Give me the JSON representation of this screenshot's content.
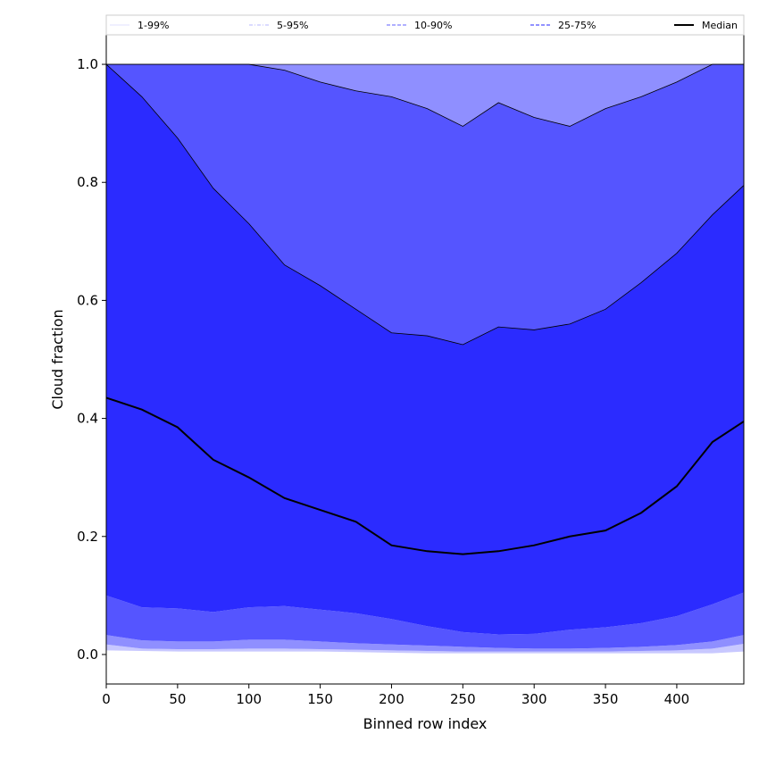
{
  "chart_data": {
    "type": "area",
    "xlabel": "Binned row index",
    "ylabel": "Cloud fraction",
    "xlim": [
      0,
      447
    ],
    "ylim": [
      -0.05,
      1.05
    ],
    "x_ticks": [
      0,
      50,
      100,
      150,
      200,
      250,
      300,
      350,
      400
    ],
    "y_ticks": [
      0.0,
      0.2,
      0.4,
      0.6,
      0.8,
      1.0
    ],
    "legend_position": "top, horizontal strip above plot",
    "legend": [
      {
        "label": "1-99%",
        "color": "#d8d8ff",
        "style": "solid-thin"
      },
      {
        "label": "5-95%",
        "color": "#a0a0ff",
        "style": "dashdot-thin"
      },
      {
        "label": "10-90%",
        "color": "#8080ff",
        "style": "dashed"
      },
      {
        "label": "25-75%",
        "color": "#5050ff",
        "style": "dashed"
      },
      {
        "label": "Median",
        "color": "#000000",
        "style": "solid-thick"
      }
    ],
    "x": [
      0,
      25,
      50,
      75,
      100,
      125,
      150,
      175,
      200,
      225,
      250,
      275,
      300,
      325,
      350,
      375,
      400,
      425,
      447
    ],
    "series": [
      {
        "name": "1-99%",
        "lower": [
          0.007,
          0.006,
          0.005,
          0.005,
          0.005,
          0.005,
          0.005,
          0.004,
          0.003,
          0.002,
          0.002,
          0.002,
          0.002,
          0.002,
          0.002,
          0.002,
          0.002,
          0.002,
          0.005
        ],
        "upper": [
          1.0,
          1.0,
          1.0,
          1.0,
          1.0,
          1.0,
          1.0,
          1.0,
          1.0,
          1.0,
          1.0,
          1.0,
          1.0,
          1.0,
          1.0,
          1.0,
          1.0,
          1.0,
          1.0
        ]
      },
      {
        "name": "5-95%",
        "lower": [
          0.017,
          0.01,
          0.009,
          0.009,
          0.01,
          0.01,
          0.009,
          0.008,
          0.007,
          0.006,
          0.005,
          0.005,
          0.005,
          0.005,
          0.005,
          0.006,
          0.007,
          0.01,
          0.018
        ],
        "upper": [
          1.0,
          1.0,
          1.0,
          1.0,
          1.0,
          0.99,
          0.97,
          0.955,
          0.945,
          0.925,
          0.895,
          0.935,
          0.91,
          0.895,
          0.925,
          0.945,
          0.97,
          1.0,
          1.0
        ]
      },
      {
        "name": "10-90%",
        "lower": [
          0.033,
          0.024,
          0.022,
          0.022,
          0.025,
          0.025,
          0.022,
          0.019,
          0.017,
          0.015,
          0.013,
          0.011,
          0.01,
          0.01,
          0.011,
          0.013,
          0.016,
          0.022,
          0.033
        ],
        "upper": [
          1.0,
          0.945,
          0.875,
          0.79,
          0.73,
          0.66,
          0.625,
          0.585,
          0.545,
          0.54,
          0.525,
          0.555,
          0.55,
          0.56,
          0.585,
          0.63,
          0.68,
          0.745,
          0.795
        ]
      },
      {
        "name": "25-75%",
        "lower": [
          0.1,
          0.08,
          0.078,
          0.072,
          0.08,
          0.082,
          0.076,
          0.07,
          0.06,
          0.048,
          0.038,
          0.034,
          0.035,
          0.042,
          0.046,
          0.053,
          0.065,
          0.085,
          0.105
        ],
        "upper": [
          1.0,
          0.945,
          0.875,
          0.79,
          0.73,
          0.66,
          0.625,
          0.585,
          0.545,
          0.54,
          0.525,
          0.555,
          0.55,
          0.56,
          0.585,
          0.63,
          0.68,
          0.745,
          0.795
        ]
      },
      {
        "name": "Median",
        "values": [
          0.435,
          0.415,
          0.385,
          0.33,
          0.3,
          0.265,
          0.245,
          0.225,
          0.185,
          0.175,
          0.17,
          0.175,
          0.185,
          0.2,
          0.21,
          0.24,
          0.285,
          0.36,
          0.395
        ]
      }
    ],
    "fill_colors": {
      "1-99%": "#8f8fff",
      "5-95%": "#5555ff",
      "10-90%": "#2b2bff",
      "25-75%": "#2b2bff",
      "outer_1_5": "#c8c8ff"
    }
  }
}
